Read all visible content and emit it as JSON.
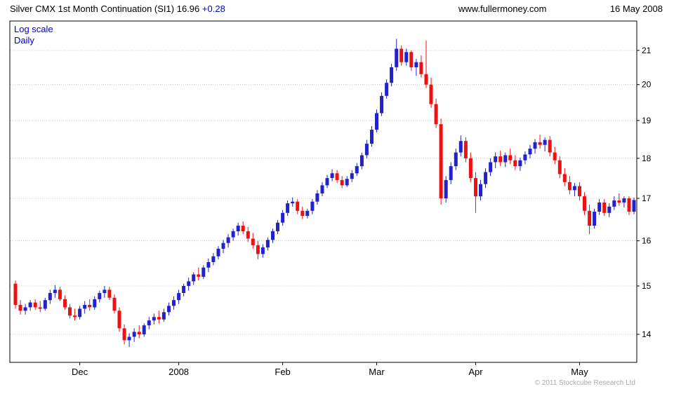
{
  "header": {
    "title": "Silver CMX 1st Month Continuation (SI1)",
    "last_price": "16.96",
    "change": "+0.28",
    "website": "www.fullermoney.com",
    "date": "16 May 2008"
  },
  "annotations": {
    "scale_label": "Log scale",
    "interval_label": "Daily",
    "copyright": "© 2011 Stockcube Research Ltd"
  },
  "chart_data": {
    "type": "candlestick",
    "title": "Silver CMX 1st Month Continuation (SI1)",
    "interval": "Daily",
    "y_scale": "log",
    "y_side": "right",
    "y_ticks": [
      14,
      15,
      16,
      17,
      18,
      19,
      20,
      21
    ],
    "y_range": [
      13.45,
      21.9
    ],
    "grid": "horizontal-dotted",
    "up_color": "#2222cc",
    "down_color": "#ee1111",
    "grid_color": "#c8c8c8",
    "x_ticks": [
      {
        "label": "Dec",
        "index": 13
      },
      {
        "label": "2008",
        "index": 33
      },
      {
        "label": "Feb",
        "index": 54
      },
      {
        "label": "Mar",
        "index": 73
      },
      {
        "label": "Apr",
        "index": 93
      },
      {
        "label": "May",
        "index": 114
      }
    ],
    "candles_ohlc": [
      [
        15.05,
        15.12,
        14.52,
        14.6
      ],
      [
        14.6,
        14.7,
        14.4,
        14.48
      ],
      [
        14.48,
        14.62,
        14.4,
        14.55
      ],
      [
        14.55,
        14.7,
        14.48,
        14.65
      ],
      [
        14.65,
        14.72,
        14.5,
        14.55
      ],
      [
        14.55,
        14.68,
        14.45,
        14.52
      ],
      [
        14.52,
        14.75,
        14.48,
        14.7
      ],
      [
        14.7,
        14.92,
        14.62,
        14.85
      ],
      [
        14.85,
        15.02,
        14.75,
        14.92
      ],
      [
        14.92,
        14.98,
        14.68,
        14.72
      ],
      [
        14.72,
        14.8,
        14.5,
        14.55
      ],
      [
        14.55,
        14.62,
        14.32,
        14.38
      ],
      [
        14.38,
        14.52,
        14.28,
        14.35
      ],
      [
        14.35,
        14.58,
        14.3,
        14.52
      ],
      [
        14.52,
        14.68,
        14.42,
        14.6
      ],
      [
        14.6,
        14.72,
        14.48,
        14.55
      ],
      [
        14.55,
        14.78,
        14.5,
        14.72
      ],
      [
        14.72,
        14.9,
        14.65,
        14.85
      ],
      [
        14.85,
        15.0,
        14.75,
        14.92
      ],
      [
        14.92,
        14.98,
        14.7,
        14.75
      ],
      [
        14.75,
        14.82,
        14.42,
        14.48
      ],
      [
        14.48,
        14.55,
        14.05,
        14.12
      ],
      [
        14.12,
        14.2,
        13.8,
        13.88
      ],
      [
        13.88,
        14.02,
        13.75,
        13.95
      ],
      [
        13.95,
        14.12,
        13.85,
        14.05
      ],
      [
        14.05,
        14.18,
        13.92,
        14.0
      ],
      [
        14.0,
        14.22,
        13.95,
        14.18
      ],
      [
        14.18,
        14.35,
        14.1,
        14.28
      ],
      [
        14.28,
        14.42,
        14.2,
        14.35
      ],
      [
        14.35,
        14.48,
        14.22,
        14.3
      ],
      [
        14.3,
        14.52,
        14.25,
        14.45
      ],
      [
        14.45,
        14.65,
        14.38,
        14.58
      ],
      [
        14.58,
        14.78,
        14.5,
        14.7
      ],
      [
        14.7,
        14.92,
        14.62,
        14.85
      ],
      [
        14.85,
        15.05,
        14.78,
        15.0
      ],
      [
        15.0,
        15.18,
        14.9,
        15.1
      ],
      [
        15.1,
        15.3,
        15.02,
        15.25
      ],
      [
        15.25,
        15.4,
        15.12,
        15.2
      ],
      [
        15.2,
        15.45,
        15.15,
        15.4
      ],
      [
        15.4,
        15.6,
        15.3,
        15.52
      ],
      [
        15.52,
        15.72,
        15.45,
        15.65
      ],
      [
        15.65,
        15.88,
        15.58,
        15.82
      ],
      [
        15.82,
        16.02,
        15.72,
        15.95
      ],
      [
        15.95,
        16.15,
        15.85,
        16.08
      ],
      [
        16.08,
        16.28,
        16.0,
        16.22
      ],
      [
        16.22,
        16.42,
        16.12,
        16.35
      ],
      [
        16.35,
        16.45,
        16.15,
        16.22
      ],
      [
        16.22,
        16.32,
        15.98,
        16.05
      ],
      [
        16.05,
        16.18,
        15.82,
        15.9
      ],
      [
        15.9,
        16.0,
        15.58,
        15.7
      ],
      [
        15.7,
        15.92,
        15.62,
        15.85
      ],
      [
        15.85,
        16.08,
        15.78,
        16.02
      ],
      [
        16.02,
        16.28,
        15.95,
        16.22
      ],
      [
        16.22,
        16.48,
        16.15,
        16.42
      ],
      [
        16.42,
        16.72,
        16.35,
        16.65
      ],
      [
        16.65,
        16.95,
        16.58,
        16.88
      ],
      [
        16.88,
        17.02,
        16.8,
        16.92
      ],
      [
        16.92,
        16.98,
        16.62,
        16.7
      ],
      [
        16.7,
        16.8,
        16.5,
        16.58
      ],
      [
        16.58,
        16.75,
        16.52,
        16.7
      ],
      [
        16.7,
        16.98,
        16.62,
        16.92
      ],
      [
        16.92,
        17.2,
        16.85,
        17.12
      ],
      [
        17.12,
        17.4,
        17.05,
        17.32
      ],
      [
        17.32,
        17.58,
        17.25,
        17.5
      ],
      [
        17.5,
        17.72,
        17.42,
        17.62
      ],
      [
        17.62,
        17.7,
        17.38,
        17.45
      ],
      [
        17.45,
        17.55,
        17.25,
        17.32
      ],
      [
        17.32,
        17.55,
        17.28,
        17.48
      ],
      [
        17.48,
        17.7,
        17.4,
        17.62
      ],
      [
        17.62,
        17.88,
        17.55,
        17.8
      ],
      [
        17.8,
        18.15,
        17.72,
        18.08
      ],
      [
        18.08,
        18.48,
        18.0,
        18.38
      ],
      [
        18.38,
        18.85,
        18.3,
        18.75
      ],
      [
        18.75,
        19.3,
        18.68,
        19.2
      ],
      [
        19.2,
        19.78,
        19.12,
        19.68
      ],
      [
        19.68,
        20.15,
        19.6,
        20.05
      ],
      [
        20.05,
        20.6,
        19.95,
        20.5
      ],
      [
        20.5,
        21.35,
        20.4,
        21.05
      ],
      [
        21.05,
        21.15,
        20.55,
        20.65
      ],
      [
        20.65,
        21.05,
        20.55,
        20.95
      ],
      [
        20.95,
        21.0,
        20.4,
        20.5
      ],
      [
        20.5,
        20.75,
        20.25,
        20.65
      ],
      [
        20.65,
        20.85,
        20.2,
        20.3
      ],
      [
        20.3,
        21.3,
        19.9,
        20.0
      ],
      [
        20.0,
        20.2,
        19.35,
        19.45
      ],
      [
        19.45,
        19.6,
        18.8,
        18.9
      ],
      [
        18.9,
        19.05,
        16.85,
        17.0
      ],
      [
        17.0,
        17.55,
        16.9,
        17.45
      ],
      [
        17.45,
        17.9,
        17.35,
        17.8
      ],
      [
        17.8,
        18.25,
        17.7,
        18.15
      ],
      [
        18.15,
        18.6,
        18.05,
        18.45
      ],
      [
        18.45,
        18.55,
        17.9,
        18.0
      ],
      [
        18.0,
        18.15,
        17.4,
        17.5
      ],
      [
        17.5,
        17.65,
        16.65,
        17.05
      ],
      [
        17.05,
        17.45,
        16.95,
        17.35
      ],
      [
        17.35,
        17.75,
        17.25,
        17.65
      ],
      [
        17.65,
        18.0,
        17.55,
        17.9
      ],
      [
        17.9,
        18.15,
        17.75,
        18.05
      ],
      [
        18.05,
        18.2,
        17.8,
        17.9
      ],
      [
        17.9,
        18.15,
        17.78,
        18.08
      ],
      [
        18.08,
        18.25,
        17.85,
        17.95
      ],
      [
        17.95,
        18.08,
        17.7,
        17.8
      ],
      [
        17.8,
        18.02,
        17.68,
        17.95
      ],
      [
        17.95,
        18.18,
        17.85,
        18.1
      ],
      [
        18.1,
        18.35,
        18.0,
        18.25
      ],
      [
        18.25,
        18.5,
        18.12,
        18.42
      ],
      [
        18.42,
        18.62,
        18.25,
        18.35
      ],
      [
        18.35,
        18.55,
        18.18,
        18.48
      ],
      [
        18.48,
        18.58,
        18.05,
        18.15
      ],
      [
        18.15,
        18.3,
        17.85,
        17.95
      ],
      [
        17.95,
        18.05,
        17.5,
        17.6
      ],
      [
        17.6,
        17.75,
        17.3,
        17.4
      ],
      [
        17.4,
        17.55,
        17.1,
        17.2
      ],
      [
        17.2,
        17.38,
        17.05,
        17.3
      ],
      [
        17.3,
        17.4,
        16.95,
        17.05
      ],
      [
        17.05,
        17.15,
        16.6,
        16.7
      ],
      [
        16.7,
        16.85,
        16.15,
        16.35
      ],
      [
        16.35,
        16.75,
        16.28,
        16.68
      ],
      [
        16.68,
        16.98,
        16.6,
        16.9
      ],
      [
        16.9,
        16.98,
        16.58,
        16.65
      ],
      [
        16.65,
        16.88,
        16.55,
        16.8
      ],
      [
        16.8,
        17.05,
        16.72,
        16.95
      ],
      [
        16.95,
        17.12,
        16.82,
        16.9
      ],
      [
        16.9,
        17.05,
        16.78,
        17.0
      ],
      [
        17.0,
        17.05,
        16.6,
        16.68
      ],
      [
        16.68,
        17.02,
        16.62,
        16.96
      ]
    ]
  }
}
